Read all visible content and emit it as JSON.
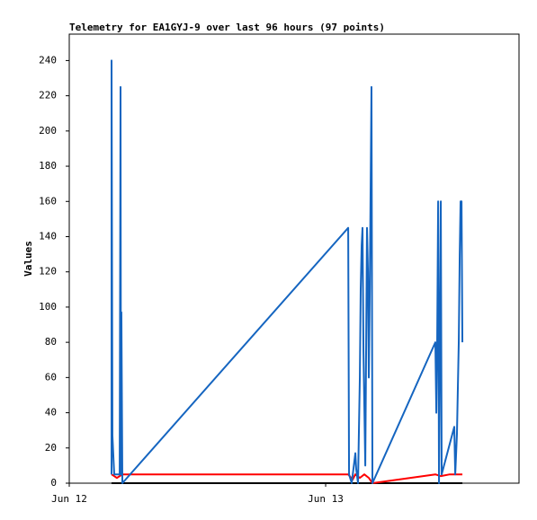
{
  "chart_data": {
    "type": "line",
    "title": "Telemetry for EA1GYJ-9 over last 96 hours (97 points)",
    "y_label": "Values",
    "xlim": [
      0,
      42.1
    ],
    "xticks": [
      {
        "value": 0,
        "label": "Jun 12"
      },
      {
        "value": 24,
        "label": "Jun 13"
      }
    ],
    "ylim": [
      0,
      255
    ],
    "yticks": [
      0,
      20,
      40,
      60,
      80,
      100,
      120,
      140,
      160,
      180,
      200,
      220,
      240
    ],
    "grid": false,
    "series": [
      {
        "color": "#000000",
        "x": [
          3.96,
          36.8
        ],
        "values": [
          0,
          0
        ]
      },
      {
        "color": "#ff0000",
        "x": [
          3.96,
          4.46,
          4.97,
          26.11,
          26.53,
          26.78,
          27.2,
          27.62,
          28.04,
          28.38,
          34.27,
          34.78,
          35.62,
          36.8
        ],
        "values": [
          5,
          3,
          5,
          5,
          2,
          5,
          3,
          5,
          3,
          0,
          5,
          4,
          5,
          5
        ]
      },
      {
        "color": "#1565c0",
        "x": [
          3.96,
          3.96,
          4.04,
          4.13,
          4.21,
          4.72,
          4.8,
          4.84,
          4.88,
          4.97,
          26.11,
          26.19,
          26.44,
          26.78,
          26.86,
          27.03,
          27.2,
          27.28,
          27.37,
          27.45,
          27.54,
          27.71,
          27.87,
          27.96,
          28.04,
          28.13,
          28.29,
          28.38,
          34.27,
          34.36,
          34.44,
          34.53,
          34.61,
          34.78,
          34.86,
          36.04,
          36.13,
          36.29,
          36.46,
          36.55,
          36.63,
          36.72,
          36.8
        ],
        "values": [
          5,
          240,
          27,
          15,
          5,
          5,
          225,
          5,
          97,
          0,
          145,
          5,
          0,
          17,
          8,
          0,
          60,
          110,
          135,
          145,
          75,
          10,
          145,
          120,
          60,
          110,
          225,
          0,
          80,
          40,
          80,
          160,
          0,
          160,
          5,
          32,
          5,
          28,
          80,
          130,
          160,
          160,
          80
        ]
      }
    ]
  }
}
